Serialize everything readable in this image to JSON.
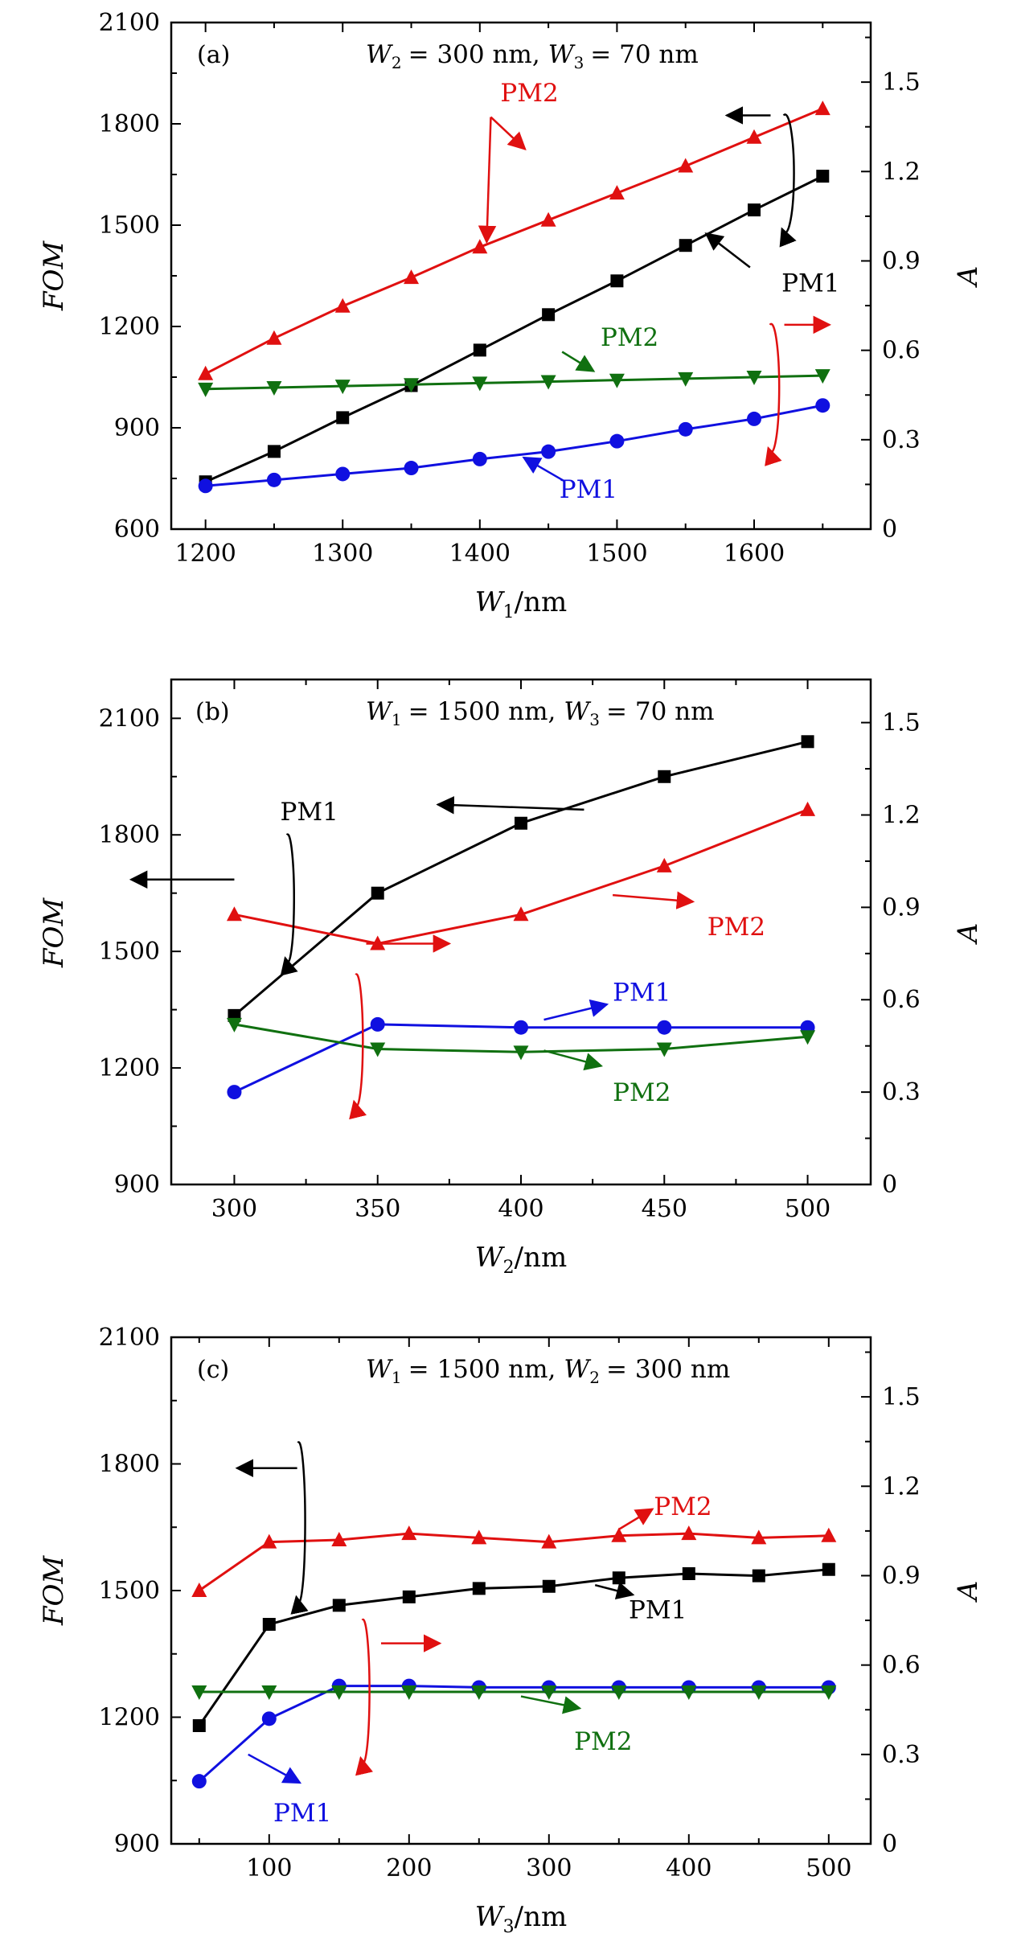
{
  "colors": {
    "PM1_FOM": "#000000",
    "PM2_FOM": "#e01010",
    "PM1_A": "#1010e0",
    "PM2_A": "#107010",
    "axis": "#000000"
  },
  "chart_data": [
    {
      "type": "line",
      "panel_label": "(a)",
      "header": {
        "w_a_sym": "W",
        "w_a_sub": "2",
        "w_a_val": "= 300 nm,",
        "w_b_sym": "W",
        "w_b_sub": "3",
        "w_b_val": "= 70 nm"
      },
      "xlabel": {
        "sym": "W",
        "sub": "1",
        "unit": "/nm"
      },
      "ylabel_left": "FOM",
      "ylabel_right": "A",
      "xlim": [
        1175,
        1685
      ],
      "xticks": [
        1200,
        1300,
        1400,
        1500,
        1600
      ],
      "ylim_left": [
        600,
        2100
      ],
      "yticks_left": [
        600,
        900,
        1200,
        1500,
        1800,
        2100
      ],
      "ylim_right": [
        0,
        1.7
      ],
      "yticks_right": [
        0,
        0.3,
        0.6,
        0.9,
        1.2,
        1.5
      ],
      "series": [
        {
          "name": "PM1",
          "key": "PM1_FOM",
          "axis": "left",
          "marker": "square",
          "x": [
            1200,
            1250,
            1300,
            1350,
            1400,
            1450,
            1500,
            1550,
            1600,
            1650
          ],
          "values": [
            740,
            830,
            930,
            1025,
            1130,
            1235,
            1335,
            1440,
            1545,
            1645
          ]
        },
        {
          "name": "PM2",
          "key": "PM2_FOM",
          "axis": "left",
          "marker": "triangle-up",
          "x": [
            1200,
            1250,
            1300,
            1350,
            1400,
            1450,
            1500,
            1550,
            1600,
            1650
          ],
          "values": [
            1060,
            1165,
            1260,
            1345,
            1435,
            1515,
            1595,
            1675,
            1760,
            1845
          ]
        },
        {
          "name": "PM1",
          "key": "PM1_A",
          "axis": "right",
          "marker": "circle",
          "x": [
            1200,
            1250,
            1300,
            1350,
            1400,
            1450,
            1500,
            1550,
            1600,
            1650
          ],
          "values": [
            0.145,
            0.165,
            0.185,
            0.205,
            0.235,
            0.26,
            0.295,
            0.335,
            0.37,
            0.415
          ]
        },
        {
          "name": "PM2",
          "key": "PM2_A",
          "axis": "right",
          "marker": "triangle-down",
          "x": [
            1200,
            1250,
            1300,
            1350,
            1400,
            1450,
            1500,
            1550,
            1600,
            1650
          ],
          "values": [
            0.47,
            0.475,
            0.48,
            0.485,
            0.49,
            0.495,
            0.5,
            0.505,
            0.51,
            0.515
          ]
        }
      ],
      "annotations": [
        {
          "text": "PM2",
          "key": "PM2_FOM",
          "tx": 1415,
          "ty": 1893,
          "ax1": 1408,
          "ay1": 1820,
          "ax2": 1433,
          "ay2": 1725,
          "rx1": 1408,
          "ry1": 1820,
          "rx2": 1405,
          "ry2": 1450
        },
        {
          "text": "PM1",
          "key": "PM1_FOM",
          "tx": 1620,
          "ty": 1330,
          "ax1": 1597,
          "ay1": 1375,
          "ax2": 1565,
          "ay2": 1475
        },
        {
          "text": "PM2",
          "key": "PM2_A",
          "tx": 1488,
          "ty": 0.645,
          "ax1": 1460,
          "ay1": 0.595,
          "ax2": 1483,
          "ay2": 0.53
        },
        {
          "text": "PM1",
          "key": "PM1_A",
          "tx": 1458,
          "ty": 0.135,
          "ax1": 1462,
          "ay1": 0.16,
          "ax2": 1432,
          "ay2": 0.24
        }
      ],
      "loops": [
        {
          "key": "PM1_FOM",
          "cx": 1625,
          "cy": 1650,
          "rx": 11,
          "ry": 175,
          "arrow_x1": 1612,
          "arrow_y1": 1825,
          "arrow_x2": 1580,
          "arrow_y2": 1825
        },
        {
          "key": "PM2_FOM",
          "cx": 1615,
          "cy": 1015,
          "rx": 10,
          "ry": 190,
          "arrow_x1": 1622,
          "arrow_y1": 1205,
          "arrow_x2": 1655,
          "arrow_y2": 1205
        }
      ]
    },
    {
      "type": "line",
      "panel_label": "(b)",
      "header": {
        "w_a_sym": "W",
        "w_a_sub": "1",
        "w_a_val": "= 1500 nm,",
        "w_b_sym": "W",
        "w_b_sub": "3",
        "w_b_val": "= 70 nm"
      },
      "xlabel": {
        "sym": "W",
        "sub": "2",
        "unit": "/nm"
      },
      "ylabel_left": "FOM",
      "ylabel_right": "A",
      "xlim": [
        278,
        522
      ],
      "xticks": [
        300,
        350,
        400,
        450,
        500
      ],
      "ylim_left": [
        900,
        2200
      ],
      "yticks_left": [
        900,
        1200,
        1500,
        1800,
        2100
      ],
      "ylim_right": [
        0,
        1.64
      ],
      "yticks_right": [
        0,
        0.3,
        0.6,
        0.9,
        1.2,
        1.5
      ],
      "series": [
        {
          "name": "PM1",
          "key": "PM1_FOM",
          "axis": "left",
          "marker": "square",
          "x": [
            300,
            350,
            400,
            450,
            500
          ],
          "values": [
            1335,
            1650,
            1830,
            1950,
            2040
          ]
        },
        {
          "name": "PM2",
          "key": "PM2_FOM",
          "axis": "left",
          "marker": "triangle-up",
          "x": [
            300,
            350,
            400,
            450,
            500
          ],
          "values": [
            1595,
            1520,
            1595,
            1720,
            1865
          ]
        },
        {
          "name": "PM1",
          "key": "PM1_A",
          "axis": "right",
          "marker": "circle",
          "x": [
            300,
            350,
            400,
            450,
            500
          ],
          "values": [
            0.3,
            0.52,
            0.51,
            0.51,
            0.51
          ]
        },
        {
          "name": "PM2",
          "key": "PM2_A",
          "axis": "right",
          "marker": "triangle-down",
          "x": [
            300,
            350,
            400,
            450,
            500
          ],
          "values": [
            0.52,
            0.44,
            0.43,
            0.44,
            0.48
          ]
        }
      ],
      "annotations": [
        {
          "text": "PM1",
          "key": "PM1_FOM",
          "tx": 316,
          "ty": 1860,
          "ax1": 422,
          "ay1": 1865,
          "ax2": 371,
          "ay2": 1878
        },
        {
          "text": "PM2",
          "key": "PM2_FOM",
          "tx": 465,
          "ty": 1565,
          "ax1": 432,
          "ay1": 1645,
          "ax2": 460,
          "ay2": 1628
        },
        {
          "text": "PM1",
          "key": "PM1_A",
          "tx": 432,
          "ty": 0.625,
          "ax1": 408,
          "ay1": 0.535,
          "ax2": 430,
          "ay2": 0.585
        },
        {
          "text": "PM2",
          "key": "PM2_A",
          "tx": 432,
          "ty": 0.3,
          "ax1": 408,
          "ay1": 0.435,
          "ax2": 428,
          "ay2": 0.385
        }
      ],
      "loops": [
        {
          "key": "PM1_FOM",
          "cx": 320,
          "cy": 1635,
          "rx": 8,
          "ry": 165,
          "arrow_x1": 300,
          "arrow_y1": 1685,
          "arrow_x2": 264,
          "arrow_y2": 1685
        },
        {
          "key": "PM2_FOM",
          "cx": 344,
          "cy": 1270,
          "rx": 8,
          "ry": 170,
          "arrow_x1": 346,
          "arrow_y1": 1520,
          "arrow_x2": 375,
          "arrow_y2": 1520
        }
      ]
    },
    {
      "type": "line",
      "panel_label": "(c)",
      "header": {
        "w_a_sym": "W",
        "w_a_sub": "1",
        "w_a_val": "= 1500 nm,",
        "w_b_sym": "W",
        "w_b_sub": "2",
        "w_b_val": "= 300 nm"
      },
      "xlabel": {
        "sym": "W",
        "sub": "3",
        "unit": "/nm"
      },
      "ylabel_left": "FOM",
      "ylabel_right": "A",
      "xlim": [
        30,
        530
      ],
      "xticks": [
        100,
        200,
        300,
        400,
        500
      ],
      "ylim_left": [
        900,
        2100
      ],
      "yticks_left": [
        900,
        1200,
        1500,
        1800,
        2100
      ],
      "ylim_right": [
        0,
        1.7
      ],
      "yticks_right": [
        0,
        0.3,
        0.6,
        0.9,
        1.2,
        1.5
      ],
      "series": [
        {
          "name": "PM1",
          "key": "PM1_FOM",
          "axis": "left",
          "marker": "square",
          "x": [
            50,
            100,
            150,
            200,
            250,
            300,
            350,
            400,
            450,
            500
          ],
          "values": [
            1180,
            1420,
            1465,
            1485,
            1505,
            1510,
            1530,
            1540,
            1535,
            1550
          ]
        },
        {
          "name": "PM2",
          "key": "PM2_FOM",
          "axis": "left",
          "marker": "triangle-up",
          "x": [
            50,
            100,
            150,
            200,
            250,
            300,
            350,
            400,
            450,
            500
          ],
          "values": [
            1500,
            1615,
            1620,
            1635,
            1625,
            1615,
            1630,
            1635,
            1625,
            1630
          ]
        },
        {
          "name": "PM1",
          "key": "PM1_A",
          "axis": "right",
          "marker": "circle",
          "x": [
            50,
            100,
            150,
            200,
            250,
            300,
            350,
            400,
            450,
            500
          ],
          "values": [
            0.21,
            0.42,
            0.53,
            0.53,
            0.525,
            0.525,
            0.525,
            0.525,
            0.525,
            0.525
          ]
        },
        {
          "name": "PM2",
          "key": "PM2_A",
          "axis": "right",
          "marker": "triangle-down",
          "x": [
            50,
            100,
            150,
            200,
            250,
            300,
            350,
            400,
            450,
            500
          ],
          "values": [
            0.51,
            0.51,
            0.51,
            0.51,
            0.51,
            0.51,
            0.51,
            0.51,
            0.51,
            0.51
          ]
        }
      ],
      "annotations": [
        {
          "text": "PM2",
          "key": "PM2_FOM",
          "tx": 375,
          "ty": 1700,
          "ax1": 350,
          "ay1": 1645,
          "ax2": 374,
          "ay2": 1693
        },
        {
          "text": "PM1",
          "key": "PM1_FOM",
          "tx": 357,
          "ty": 1455,
          "ax1": 333,
          "ay1": 1513,
          "ax2": 360,
          "ay2": 1490
        },
        {
          "text": "PM2",
          "key": "PM2_A",
          "tx": 318,
          "ty": 0.345,
          "ax1": 280,
          "ay1": 0.495,
          "ax2": 322,
          "ay2": 0.455
        },
        {
          "text": "PM1",
          "key": "PM1_A",
          "tx": 103,
          "ty": 0.105,
          "ax1": 85,
          "ay1": 0.3,
          "ax2": 122,
          "ay2": 0.205
        }
      ],
      "loops": [
        {
          "key": "PM1_FOM",
          "cx": 124,
          "cy": 1660,
          "rx": 8,
          "ry": 190,
          "arrow_x1": 120,
          "arrow_y1": 1790,
          "arrow_x2": 77,
          "arrow_y2": 1790
        },
        {
          "key": "PM2_FOM",
          "cx": 170,
          "cy": 1260,
          "rx": 8,
          "ry": 170,
          "arrow_x1": 180,
          "arrow_y1": 1375,
          "arrow_x2": 222,
          "arrow_y2": 1375
        }
      ]
    }
  ]
}
